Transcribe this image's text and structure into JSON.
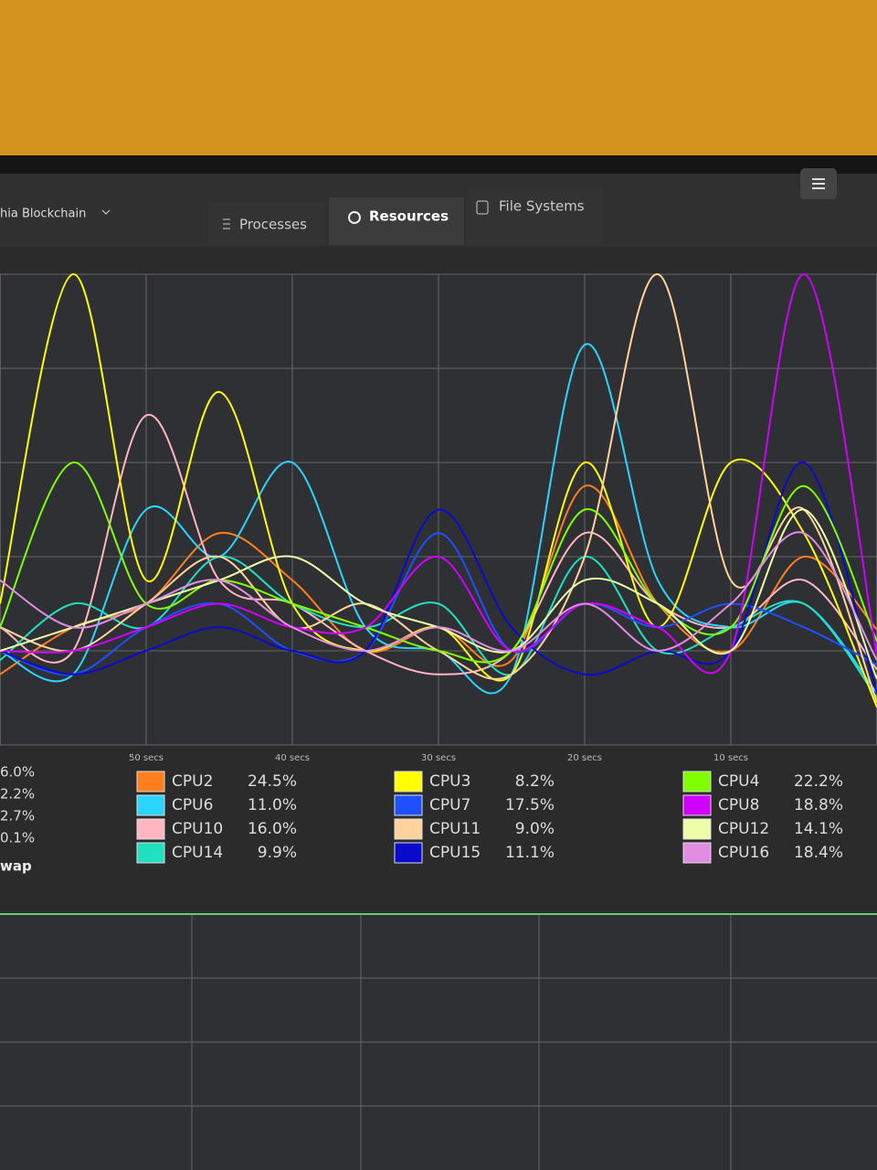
{
  "header": {
    "app": "hia Blockchain",
    "tabs": [
      "Processes",
      "Resources",
      "File Systems"
    ]
  },
  "chart_data": {
    "type": "line",
    "x": [
      60,
      55,
      50,
      45,
      40,
      35,
      30,
      25,
      20,
      15,
      10,
      5,
      0
    ],
    "xlim": [
      60,
      0
    ],
    "xticks": [
      {
        "value": 50,
        "label": "50 secs"
      },
      {
        "value": 40,
        "label": "40 secs"
      },
      {
        "value": 30,
        "label": "30 secs"
      },
      {
        "value": 20,
        "label": "20 secs"
      },
      {
        "value": 10,
        "label": "10 secs"
      }
    ],
    "ylim": [
      0,
      100
    ],
    "yticks": [
      0,
      20,
      40,
      60,
      80,
      100
    ],
    "grid": true,
    "series": [
      {
        "name": "CPU2",
        "current": "24.5%",
        "color": "#ff7f1f",
        "values": [
          15,
          25,
          30,
          45,
          35,
          20,
          25,
          18,
          55,
          30,
          20,
          40,
          24.5
        ]
      },
      {
        "name": "CPU6",
        "current": "11.0%",
        "color": "#2ad4ff",
        "values": [
          20,
          15,
          50,
          40,
          60,
          25,
          20,
          15,
          85,
          35,
          25,
          30,
          11
        ]
      },
      {
        "name": "CPU10",
        "current": "16.0%",
        "color": "#ffb6c1",
        "values": [
          25,
          20,
          70,
          35,
          30,
          20,
          15,
          20,
          45,
          30,
          25,
          35,
          16
        ]
      },
      {
        "name": "CPU14",
        "current": "9.9%",
        "color": "#20e0c0",
        "values": [
          18,
          30,
          25,
          40,
          30,
          25,
          30,
          15,
          40,
          20,
          25,
          30,
          10
        ]
      },
      {
        "name": "CPU3",
        "current": "8.2%",
        "color": "#ffff00",
        "values": [
          30,
          100,
          35,
          75,
          30,
          20,
          25,
          15,
          60,
          25,
          60,
          45,
          8
        ]
      },
      {
        "name": "CPU7",
        "current": "17.5%",
        "color": "#1e50ff",
        "values": [
          20,
          15,
          25,
          30,
          20,
          20,
          45,
          20,
          30,
          25,
          30,
          25,
          17
        ]
      },
      {
        "name": "CPU11",
        "current": "9.0%",
        "color": "#ffd39b",
        "values": [
          25,
          20,
          30,
          40,
          25,
          30,
          20,
          15,
          40,
          100,
          35,
          50,
          9
        ]
      },
      {
        "name": "CPU15",
        "current": "11.1%",
        "color": "#0a0acd",
        "values": [
          20,
          15,
          20,
          25,
          20,
          20,
          50,
          25,
          15,
          20,
          20,
          60,
          11
        ]
      },
      {
        "name": "CPU4",
        "current": "22.2%",
        "color": "#7fff00",
        "values": [
          25,
          60,
          30,
          35,
          30,
          25,
          20,
          20,
          50,
          30,
          25,
          55,
          22
        ]
      },
      {
        "name": "CPU8",
        "current": "18.8%",
        "color": "#d000ff",
        "values": [
          20,
          20,
          25,
          30,
          25,
          25,
          40,
          20,
          30,
          25,
          20,
          100,
          19
        ]
      },
      {
        "name": "CPU12",
        "current": "14.1%",
        "color": "#eeffaa",
        "values": [
          20,
          25,
          30,
          35,
          40,
          30,
          25,
          20,
          35,
          30,
          20,
          50,
          14
        ]
      },
      {
        "name": "CPU16",
        "current": "18.4%",
        "color": "#e28ce2",
        "values": [
          35,
          25,
          30,
          35,
          25,
          20,
          25,
          20,
          30,
          20,
          30,
          45,
          18
        ]
      }
    ]
  },
  "legend_partial": [
    "6.0%",
    "2.2%",
    "2.7%",
    "0.1%"
  ],
  "swap_label": "wap"
}
